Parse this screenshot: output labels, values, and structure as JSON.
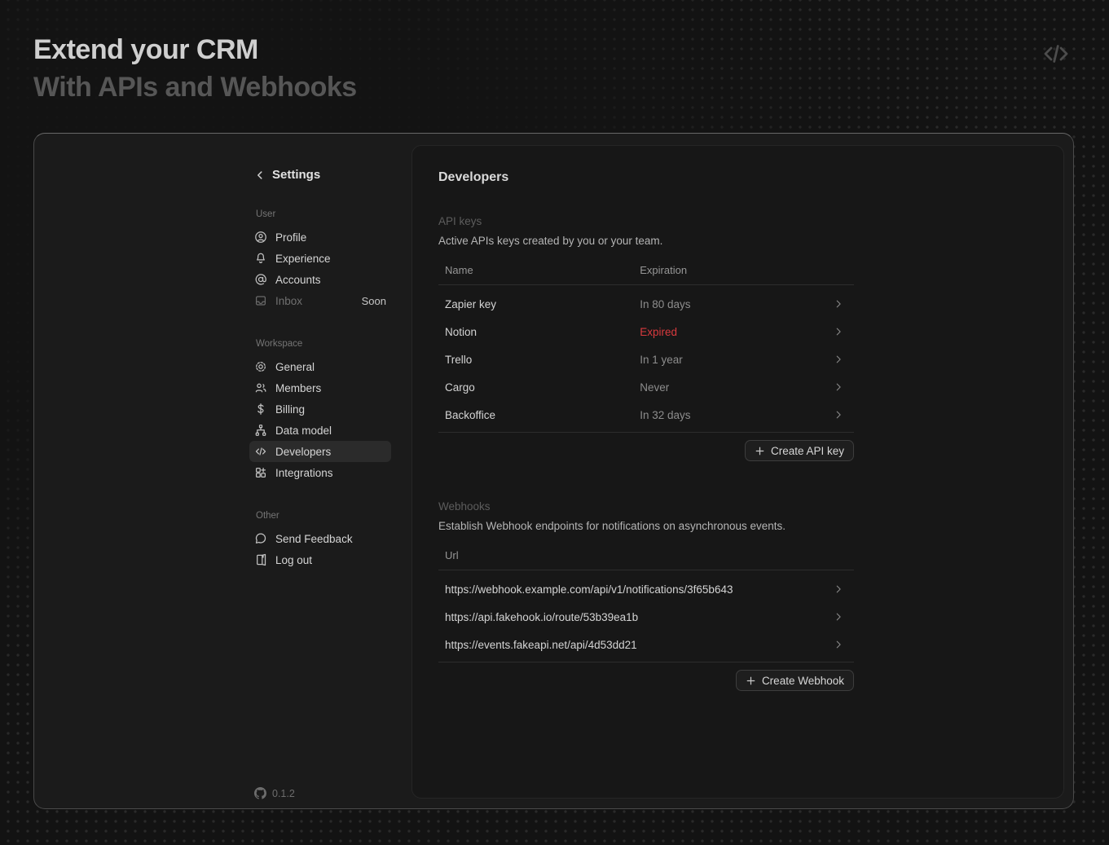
{
  "page": {
    "title_line1": "Extend your CRM",
    "title_line2": "With APIs and Webhooks",
    "header_icon": "code-icon"
  },
  "sidebar": {
    "title": "Settings",
    "back_icon": "chevron-left-icon",
    "version": "0.1.2",
    "version_icon": "github-icon",
    "sections": [
      {
        "label": "User",
        "items": [
          {
            "label": "Profile",
            "icon": "profile-icon"
          },
          {
            "label": "Experience",
            "icon": "bell-icon"
          },
          {
            "label": "Accounts",
            "icon": "at-icon"
          },
          {
            "label": "Inbox",
            "icon": "inbox-icon",
            "badge": "Soon",
            "disabled": true
          }
        ]
      },
      {
        "label": "Workspace",
        "items": [
          {
            "label": "General",
            "icon": "gear-icon"
          },
          {
            "label": "Members",
            "icon": "members-icon"
          },
          {
            "label": "Billing",
            "icon": "dollar-icon"
          },
          {
            "label": "Data model",
            "icon": "data-model-icon"
          },
          {
            "label": "Developers",
            "icon": "code-icon",
            "active": true
          },
          {
            "label": "Integrations",
            "icon": "integrations-icon"
          }
        ]
      },
      {
        "label": "Other",
        "items": [
          {
            "label": "Send Feedback",
            "icon": "feedback-icon"
          },
          {
            "label": "Log out",
            "icon": "logout-icon"
          }
        ]
      }
    ]
  },
  "main": {
    "title": "Developers",
    "api_keys": {
      "section_label": "API keys",
      "description": "Active APIs keys created by you or your team.",
      "columns": [
        "Name",
        "Expiration"
      ],
      "rows": [
        {
          "name": "Zapier key",
          "expiration": "In 80 days",
          "expired": false
        },
        {
          "name": "Notion",
          "expiration": "Expired",
          "expired": true
        },
        {
          "name": "Trello",
          "expiration": "In 1 year",
          "expired": false
        },
        {
          "name": "Cargo",
          "expiration": "Never",
          "expired": false
        },
        {
          "name": "Backoffice",
          "expiration": "In 32 days",
          "expired": false
        }
      ],
      "create_button": "Create API key"
    },
    "webhooks": {
      "section_label": "Webhooks",
      "description": "Establish Webhook endpoints for notifications on asynchronous events.",
      "columns": [
        "Url"
      ],
      "rows": [
        {
          "url": "https://webhook.example.com/api/v1/notifications/3f65b643"
        },
        {
          "url": "https://api.fakehook.io/route/53b39ea1b"
        },
        {
          "url": "https://events.fakeapi.net/api/4d53dd21"
        }
      ],
      "create_button": "Create Webhook"
    }
  },
  "colors": {
    "expired_red": "#d93a3e",
    "active_item_bg": "#2b2b2b",
    "panel_bg": "#171717",
    "card_bg": "#1b1b1b"
  }
}
